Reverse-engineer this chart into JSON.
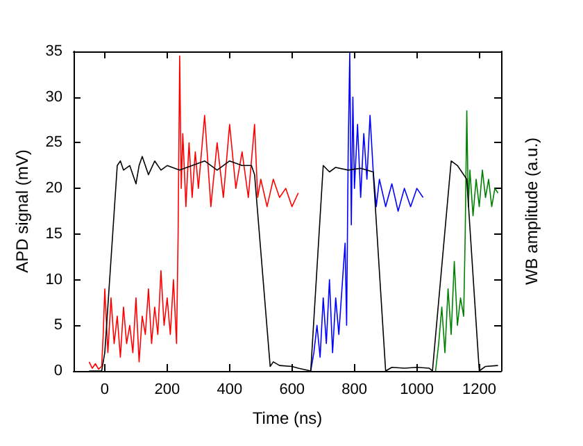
{
  "chart_data": {
    "type": "line",
    "xlabel": "Time (ns)",
    "ylabel": "APD signal (mV)",
    "y2label": "WB amplitude (a.u.)",
    "xlim": [
      -100,
      1270
    ],
    "xticks": [
      0,
      200,
      400,
      600,
      800,
      1000,
      1200
    ],
    "ylim": [
      0,
      35
    ],
    "yticks": [
      0,
      5,
      10,
      15,
      20,
      25,
      30,
      35
    ],
    "marker": "none",
    "line_style": "solid",
    "series": [
      {
        "color": "#ff0000",
        "x": [
          -50,
          -40,
          -30,
          -20,
          -10,
          -5,
          0,
          10,
          20,
          30,
          40,
          50,
          60,
          70,
          80,
          90,
          100,
          110,
          120,
          130,
          140,
          150,
          160,
          170,
          180,
          190,
          200,
          210,
          220,
          230,
          235,
          240,
          245,
          250,
          260,
          270,
          280,
          290,
          300,
          320,
          340,
          360,
          380,
          400,
          420,
          440,
          460,
          480,
          490,
          500,
          520,
          540,
          560,
          580,
          600,
          620
        ],
        "values": [
          1,
          0.3,
          0.8,
          0.2,
          0.5,
          4,
          9,
          2,
          8,
          3,
          6,
          1.5,
          7,
          3,
          5,
          2,
          8,
          1,
          6,
          4,
          9,
          3,
          7,
          4,
          11,
          5,
          8,
          4,
          10,
          3,
          15,
          34.5,
          20,
          26,
          18,
          25,
          19,
          24,
          20,
          28,
          18,
          25,
          19,
          27,
          20,
          24,
          19,
          27,
          19,
          21,
          18,
          21,
          19,
          20,
          18,
          19.5
        ]
      },
      {
        "color": "#0000ff",
        "x": [
          660,
          670,
          680,
          690,
          700,
          710,
          720,
          730,
          740,
          750,
          760,
          770,
          775,
          780,
          785,
          790,
          795,
          800,
          810,
          820,
          830,
          840,
          850,
          860,
          870,
          880,
          900,
          920,
          940,
          960,
          980,
          1000,
          1020
        ],
        "values": [
          0,
          2,
          5,
          1.5,
          8,
          3,
          10,
          2,
          8,
          4,
          9,
          14,
          5,
          24,
          34.8,
          16,
          30,
          20,
          27,
          19,
          26,
          21,
          28,
          22,
          18,
          21,
          18,
          20.5,
          17.5,
          20,
          18,
          20,
          19
        ]
      },
      {
        "color": "#008000",
        "x": [
          1060,
          1070,
          1080,
          1090,
          1100,
          1110,
          1120,
          1130,
          1140,
          1150,
          1155,
          1160,
          1165,
          1170,
          1180,
          1190,
          1200,
          1210,
          1220,
          1230,
          1240,
          1250,
          1260
        ],
        "values": [
          0,
          3,
          7,
          2,
          9,
          4,
          12,
          5,
          8,
          6,
          15,
          28.5,
          18,
          22,
          17,
          21,
          18,
          22,
          19,
          21,
          18,
          20,
          19.5
        ]
      },
      {
        "color": "#000000",
        "x": [
          -50,
          -10,
          0,
          40,
          50,
          60,
          80,
          100,
          110,
          120,
          140,
          160,
          180,
          200,
          240,
          280,
          320,
          360,
          400,
          440,
          470,
          480,
          530,
          540,
          560,
          600,
          620,
          660,
          700,
          720,
          740,
          780,
          820,
          860,
          900,
          920,
          960,
          1000,
          1040,
          1050,
          1110,
          1130,
          1160,
          1200,
          1220,
          1260
        ],
        "values": [
          0,
          0,
          2,
          22.5,
          23,
          22,
          22.5,
          20.5,
          22.5,
          23.5,
          21.5,
          23,
          22,
          22.5,
          22,
          22.5,
          23,
          22,
          23,
          22.5,
          22.5,
          21.5,
          0.5,
          1,
          0.6,
          0.5,
          0.3,
          0,
          22.5,
          21.8,
          22.3,
          22,
          22.2,
          21.8,
          0,
          0.4,
          0.3,
          0.4,
          0.3,
          0,
          23,
          22.5,
          21,
          0,
          0.5,
          0.6
        ]
      }
    ]
  }
}
